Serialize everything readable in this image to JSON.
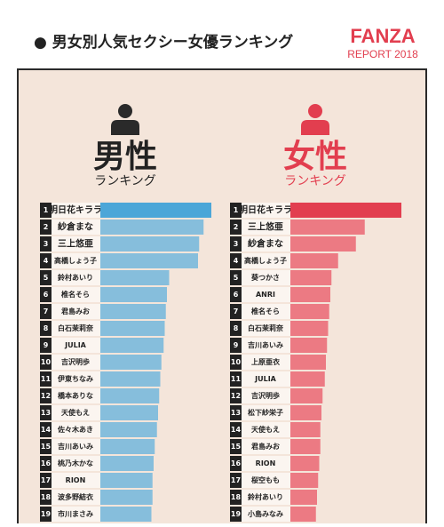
{
  "header": {
    "title": "● 男女別人気セクシー女優ランキング",
    "logo": "FANZA",
    "report": "REPORT 2018"
  },
  "chart_data": [
    {
      "type": "bar",
      "orientation": "horizontal",
      "title": "男性",
      "subtitle": "ランキング",
      "color": "#86bedc",
      "highlight_color": "#4ba6d8",
      "icon_color": "#2a2a2a",
      "title_color": "#222222",
      "ranks": [
        "1",
        "2",
        "3",
        "4",
        "5",
        "6",
        "7",
        "8",
        "9",
        "10",
        "11",
        "12",
        "13",
        "14",
        "15",
        "16",
        "17",
        "18",
        "19"
      ],
      "categories": [
        "明日花キララ",
        "紗倉まな",
        "三上悠亜",
        "高橋しょう子",
        "鈴村あいり",
        "椎名そら",
        "君島みお",
        "白石茉莉奈",
        "JULIA",
        "吉沢明歩",
        "伊東ちなみ",
        "橋本ありな",
        "天使もえ",
        "佐々木あき",
        "吉川あいみ",
        "桃乃木かな",
        "RION",
        "波多野結衣",
        "市川まさみ"
      ],
      "values": [
        100,
        93,
        89,
        88,
        62,
        60,
        59,
        58,
        57,
        55,
        54,
        53,
        52,
        51,
        49,
        48,
        47,
        47,
        46
      ],
      "xlim": [
        0,
        100
      ]
    },
    {
      "type": "bar",
      "orientation": "horizontal",
      "title": "女性",
      "subtitle": "ランキング",
      "color": "#ec7a83",
      "highlight_color": "#e23e4f",
      "icon_color": "#e23e4f",
      "title_color": "#e23e4f",
      "ranks": [
        "1",
        "2",
        "3",
        "4",
        "5",
        "6",
        "7",
        "8",
        "9",
        "10",
        "11",
        "12",
        "13",
        "14",
        "15",
        "16",
        "17",
        "18",
        "19"
      ],
      "categories": [
        "明日花キララ",
        "三上悠亜",
        "紗倉まな",
        "高橋しょう子",
        "葵つかさ",
        "ANRI",
        "椎名そら",
        "白石茉莉奈",
        "吉川あいみ",
        "上原亜衣",
        "JULIA",
        "吉沢明歩",
        "松下紗栄子",
        "天使もえ",
        "君島みお",
        "RION",
        "桜空もも",
        "鈴村あいり",
        "小島みなみ"
      ],
      "values": [
        100,
        67,
        59,
        43,
        37,
        36,
        35,
        34,
        33,
        32,
        31,
        29,
        28,
        27,
        27,
        26,
        25,
        24,
        23
      ],
      "xlim": [
        0,
        100
      ]
    }
  ]
}
